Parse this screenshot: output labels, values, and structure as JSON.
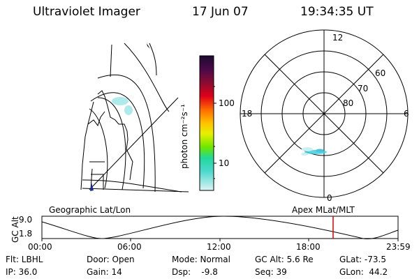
{
  "header": {
    "title": "Ultraviolet Imager",
    "date": "17 Jun 07",
    "time": "19:34:35 UT"
  },
  "colorbar": {
    "label": "photon cm⁻²s⁻¹",
    "ticks": [
      "100",
      "10"
    ],
    "colors": [
      "#1b0b2e",
      "#4a0a4a",
      "#7a0d3a",
      "#b3001e",
      "#e0001a",
      "#ff4d00",
      "#ff8a00",
      "#ffc200",
      "#eaf000",
      "#b5f000",
      "#5fe200",
      "#1fd89a",
      "#4fd8d0",
      "#9fe6e6",
      "#d4f2f2"
    ]
  },
  "polar_plot": {
    "mlt_labels": [
      "12",
      "18",
      "6",
      "0"
    ],
    "lat_labels": [
      "60",
      "70",
      "80"
    ]
  },
  "map_labels": {
    "left": "Geographic Lat/Lon",
    "right": "Apex MLat/MLT"
  },
  "orbit": {
    "ylabel": "GC Alt",
    "ytick_top": "9.0",
    "ytick_bottom": "1.8",
    "xticks": [
      "00:00",
      "06:00",
      "12:00",
      "18:00",
      "23:59"
    ],
    "marker_color": "#e00000"
  },
  "status": {
    "flt": "Flt: LBHL",
    "ip": "IP: 36.0",
    "door": "Door: Open",
    "gain": "Gain: 14",
    "mode": "Mode: Normal",
    "dsp": "Dsp:    -9.8",
    "gcalt": "GC Alt: 5.6 Re",
    "seq": "Seq: 39",
    "glat": "GLat: -73.5",
    "glon": "GLon:  44.2"
  }
}
